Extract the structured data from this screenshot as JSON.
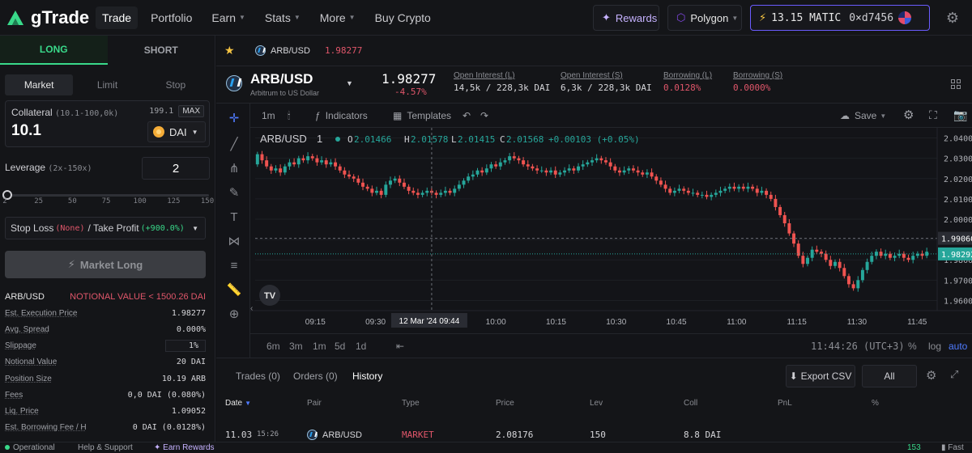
{
  "app": {
    "name": "gTrade",
    "nav": [
      {
        "label": "Trade",
        "active": true,
        "dropdown": false
      },
      {
        "label": "Portfolio",
        "active": false,
        "dropdown": false
      },
      {
        "label": "Earn",
        "active": false,
        "dropdown": true
      },
      {
        "label": "Stats",
        "active": false,
        "dropdown": true
      },
      {
        "label": "More",
        "active": false,
        "dropdown": true
      },
      {
        "label": "Buy Crypto",
        "active": false,
        "dropdown": false
      }
    ],
    "rewards_label": "Rewards",
    "network_label": "Polygon",
    "balance": "13.15 MATIC",
    "address": "0×d7456"
  },
  "order_panel": {
    "long_label": "LONG",
    "short_label": "SHORT",
    "order_types": [
      "Market",
      "Limit",
      "Stop"
    ],
    "active_order_type": "Market",
    "collateral_label": "Collateral",
    "collateral_range": "(10.1-100,0k)",
    "collateral_balance": "199.1",
    "max_label": "MAX",
    "collateral_value": "10.1",
    "collateral_token": "DAI",
    "leverage_label": "Leverage",
    "leverage_range": "(2x-150x)",
    "leverage_value": "2",
    "leverage_ticks": [
      "2",
      "25",
      "50",
      "75",
      "100",
      "125",
      "150"
    ],
    "leverage_min": 2,
    "leverage_max": 150,
    "sl_label": "Stop Loss",
    "sl_value": "(None)",
    "tp_label": "/ Take Profit",
    "tp_value": "(+900.0%)",
    "submit_label": "Market Long",
    "summary_pair": "ARB/USD",
    "notional_warning": "NOTIONAL VALUE < 1500.26 DAI",
    "summary": [
      {
        "k": "Est. Execution Price",
        "v": "1.98277"
      },
      {
        "k": "Avg. Spread",
        "v": "0.000%"
      },
      {
        "k": "Slippage",
        "v": "1%"
      },
      {
        "k": "Notional Value",
        "v": "20 DAI"
      },
      {
        "k": "Position Size",
        "v": "10.19 ARB"
      },
      {
        "k": "Fees",
        "v": "0,0 DAI (0.080%)"
      },
      {
        "k": "Liq. Price",
        "v": "1.09052"
      },
      {
        "k": "Est. Borrowing Fee / H",
        "v": "0 DAI (0.0128%)"
      }
    ]
  },
  "ticker": {
    "pair": "ARB/USD",
    "price": "1.98277"
  },
  "market": {
    "pair": "ARB/USD",
    "subtitle": "Arbitrum to US Dollar",
    "price": "1.98277",
    "change": "-4.57%",
    "stats": [
      {
        "label": "Open Interest (L)",
        "value": "14,5k / 228,3k DAI",
        "red": false
      },
      {
        "label": "Open Interest (S)",
        "value": "6,3k / 228,3k DAI",
        "red": false
      },
      {
        "label": "Borrowing (L)",
        "value": "0.0128%",
        "red": true
      },
      {
        "label": "Borrowing (S)",
        "value": "0.0000%",
        "red": true
      }
    ]
  },
  "chart_toolbar": {
    "interval": "1m",
    "indicators": "Indicators",
    "templates": "Templates",
    "save": "Save"
  },
  "chart_data": {
    "type": "candlestick",
    "legend": {
      "symbol": "ARB/USD",
      "interval": "1",
      "o": "2.01466",
      "h": "2.01578",
      "l": "2.01415",
      "c": "2.01568",
      "chg": "+0.00103 (+0.05%)"
    },
    "ylim": [
      1.955,
      2.045
    ],
    "y_ticks": [
      "2.04000",
      "2.03000",
      "2.02000",
      "2.01000",
      "2.00000",
      "1.99000",
      "1.98000",
      "1.97000",
      "1.96000"
    ],
    "x_ticks": [
      "09:15",
      "09:30",
      "09:44",
      "10:00",
      "10:15",
      "10:30",
      "10:45",
      "11:00",
      "11:15",
      "11:30",
      "11:45"
    ],
    "x_range_minutes": [
      540,
      710
    ],
    "crosshair_time": "12 Mar '24  09:44",
    "crosshair_minute": 584,
    "crosshair_price": "1.99060",
    "crosshair_price_value": 1.9906,
    "last_price": "1.98292",
    "last_price_value": 1.98292,
    "close_series": [
      2.032,
      2.029,
      2.026,
      2.024,
      2.025,
      2.023,
      2.026,
      2.028,
      2.027,
      2.03,
      2.029,
      2.031,
      2.03,
      2.028,
      2.029,
      2.027,
      2.028,
      2.026,
      2.024,
      2.022,
      2.021,
      2.02,
      2.018,
      2.016,
      2.015,
      2.013,
      2.014,
      2.012,
      2.017,
      2.019,
      2.02,
      2.018,
      2.016,
      2.014,
      2.013,
      2.012,
      2.013,
      2.014,
      2.013,
      2.012,
      2.013,
      2.014,
      2.013,
      2.015,
      2.017,
      2.019,
      2.021,
      2.022,
      2.024,
      2.023,
      2.025,
      2.027,
      2.026,
      2.028,
      2.029,
      2.031,
      2.03,
      2.029,
      2.027,
      2.026,
      2.025,
      2.024,
      2.024,
      2.023,
      2.024,
      2.022,
      2.023,
      2.024,
      2.025,
      2.024,
      2.026,
      2.027,
      2.028,
      2.029,
      2.03,
      2.029,
      2.028,
      2.026,
      2.024,
      2.023,
      2.024,
      2.025,
      2.024,
      2.023,
      2.022,
      2.023,
      2.021,
      2.019,
      2.017,
      2.015,
      2.013,
      2.014,
      2.015,
      2.014,
      2.013,
      2.013,
      2.012,
      2.012,
      2.011,
      2.012,
      2.013,
      2.014,
      2.015,
      2.016,
      2.015,
      2.016,
      2.015,
      2.016,
      2.015,
      2.013,
      2.014,
      2.012,
      2.01,
      2.006,
      2.002,
      1.998,
      1.993,
      1.988,
      1.982,
      1.978,
      1.981,
      1.985,
      1.984,
      1.983,
      1.98,
      1.977,
      1.979,
      1.976,
      1.972,
      1.968,
      1.966,
      1.97,
      1.975,
      1.979,
      1.982,
      1.984,
      1.982,
      1.983,
      1.981,
      1.982,
      1.983,
      1.981,
      1.98,
      1.982,
      1.983,
      1.982,
      1.984
    ]
  },
  "chart_bottom": {
    "ranges": [
      "6m",
      "3m",
      "1m",
      "5d",
      "1d"
    ],
    "time": "11:44:26 (UTC+3)",
    "pct": "%",
    "log": "log",
    "auto": "auto"
  },
  "trades": {
    "tabs": [
      "Trades (0)",
      "Orders (0)",
      "History"
    ],
    "active_tab": "History",
    "export_label": "Export CSV",
    "filter_label": "All",
    "columns": [
      "Date",
      "Pair",
      "Type",
      "Price",
      "Lev",
      "Coll",
      "PnL",
      "%"
    ],
    "rows": [
      {
        "date": "11.03",
        "time": "15:26",
        "pair": "ARB/USD",
        "type": "MARKET",
        "price": "2.08176",
        "lev": "150",
        "coll": "8.8 DAI"
      }
    ]
  },
  "footer": {
    "status": "Operational",
    "help": "Help & Support",
    "earn": "Earn Rewards",
    "block": "153",
    "speed": "Fast"
  },
  "colors": {
    "up": "#26a69a",
    "down": "#ef5350",
    "accent": "#39d98a",
    "brand": "#6b5cff"
  }
}
